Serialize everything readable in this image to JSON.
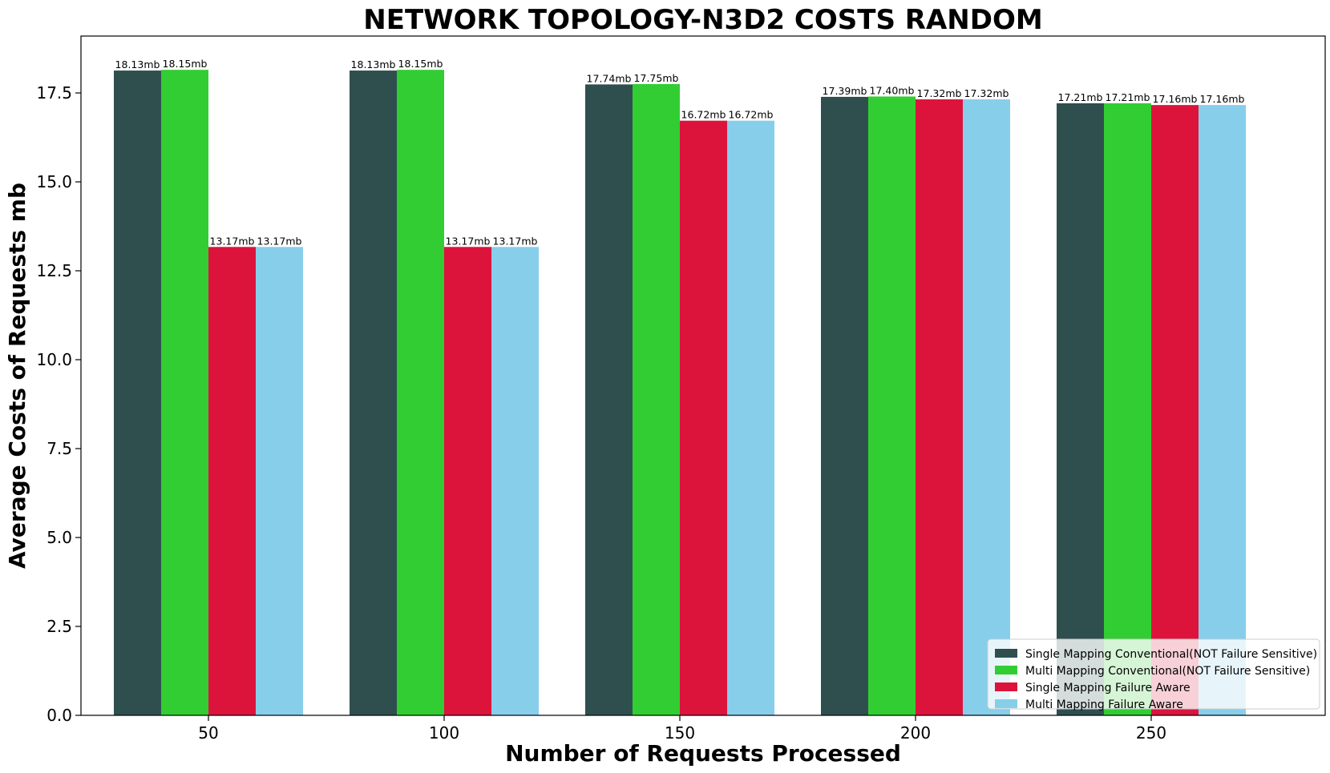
{
  "chart_data": {
    "type": "bar",
    "title": "NETWORK TOPOLOGY-N3D2 COSTS RANDOM",
    "xlabel": "Number of Requests Processed",
    "ylabel": "Average Costs of Requests mb",
    "categories": [
      "50",
      "100",
      "150",
      "200",
      "250"
    ],
    "ylim": [
      0,
      19.1
    ],
    "yticks": [
      "0.0",
      "2.5",
      "5.0",
      "7.5",
      "10.0",
      "12.5",
      "15.0",
      "17.5"
    ],
    "series": [
      {
        "name": "Single Mapping Conventional(NOT Failure Sensitive)",
        "color": "#2f4f4f",
        "values": [
          18.13,
          18.13,
          17.74,
          17.39,
          17.21
        ],
        "labels": [
          "18.13mb",
          "18.13mb",
          "17.74mb",
          "17.39mb",
          "17.21mb"
        ]
      },
      {
        "name": "Multi Mapping Conventional(NOT Failure Sensitive)",
        "color": "#32cd32",
        "values": [
          18.15,
          18.15,
          17.75,
          17.4,
          17.21
        ],
        "labels": [
          "18.15mb",
          "18.15mb",
          "17.75mb",
          "17.40mb",
          "17.21mb"
        ]
      },
      {
        "name": "Single Mapping Failure Aware",
        "color": "#dc143c",
        "values": [
          13.17,
          13.17,
          16.72,
          17.32,
          17.16
        ],
        "labels": [
          "13.17mb",
          "13.17mb",
          "16.72mb",
          "17.32mb",
          "17.16mb"
        ]
      },
      {
        "name": "Multi Mapping Failure Aware",
        "color": "#87ceeb",
        "values": [
          13.17,
          13.17,
          16.72,
          17.32,
          17.16
        ],
        "labels": [
          "13.17mb",
          "13.17mb",
          "16.72mb",
          "17.32mb",
          "17.16mb"
        ]
      }
    ],
    "legend_position": "lower-right",
    "grid": false
  }
}
